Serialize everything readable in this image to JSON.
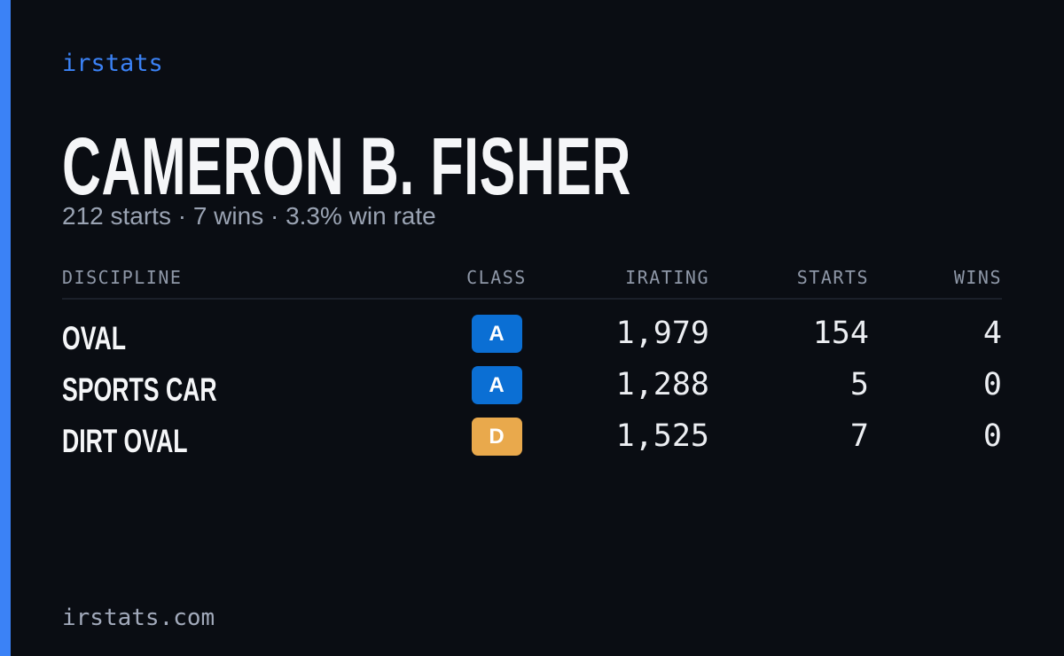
{
  "brand": "irstats",
  "driver": {
    "name": "CAMERON B. FISHER",
    "summary": "212 starts · 7 wins · 3.3% win rate"
  },
  "table": {
    "headers": [
      "DISCIPLINE",
      "CLASS",
      "IRATING",
      "STARTS",
      "WINS"
    ],
    "rows": [
      {
        "discipline": "OVAL",
        "class": "A",
        "class_color": "#0b6fd4",
        "irating": "1,979",
        "starts": "154",
        "wins": "4"
      },
      {
        "discipline": "SPORTS CAR",
        "class": "A",
        "class_color": "#0b6fd4",
        "irating": "1,288",
        "starts": "5",
        "wins": "0"
      },
      {
        "discipline": "DIRT OVAL",
        "class": "D",
        "class_color": "#e9a94c",
        "irating": "1,525",
        "starts": "7",
        "wins": "0"
      }
    ]
  },
  "footer": "irstats.com"
}
